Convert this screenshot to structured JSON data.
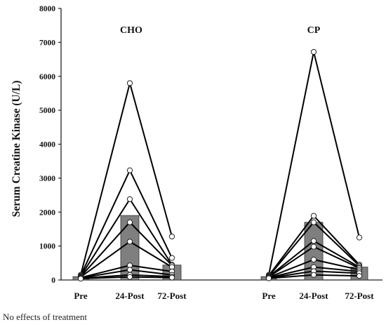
{
  "chart_data": {
    "type": "bar",
    "ylabel": "Serum Creatine Kinase (U/L)",
    "ylim": [
      0,
      8000
    ],
    "yticks": [
      0,
      1000,
      2000,
      3000,
      4000,
      5000,
      6000,
      7000,
      8000
    ],
    "categories": [
      "Pre",
      "24-Post",
      "72-Post"
    ],
    "groups": [
      {
        "title": "CHO",
        "bar_means": [
          100,
          1900,
          440
        ],
        "individuals": [
          [
            150,
            5800,
            1280
          ],
          [
            130,
            3230,
            650
          ],
          [
            110,
            2380,
            450
          ],
          [
            100,
            1700,
            430
          ],
          [
            90,
            1130,
            380
          ],
          [
            70,
            430,
            250
          ],
          [
            60,
            300,
            150
          ],
          [
            50,
            150,
            100
          ],
          [
            40,
            90,
            70
          ]
        ]
      },
      {
        "title": "CP",
        "bar_means": [
          100,
          1700,
          380
        ],
        "individuals": [
          [
            150,
            6720,
            1250
          ],
          [
            130,
            1890,
            450
          ],
          [
            110,
            1700,
            420
          ],
          [
            100,
            1150,
            380
          ],
          [
            90,
            980,
            350
          ],
          [
            80,
            600,
            300
          ],
          [
            70,
            380,
            250
          ],
          [
            60,
            260,
            200
          ],
          [
            50,
            150,
            120
          ]
        ]
      }
    ]
  },
  "footnote": "No effects of treatment"
}
